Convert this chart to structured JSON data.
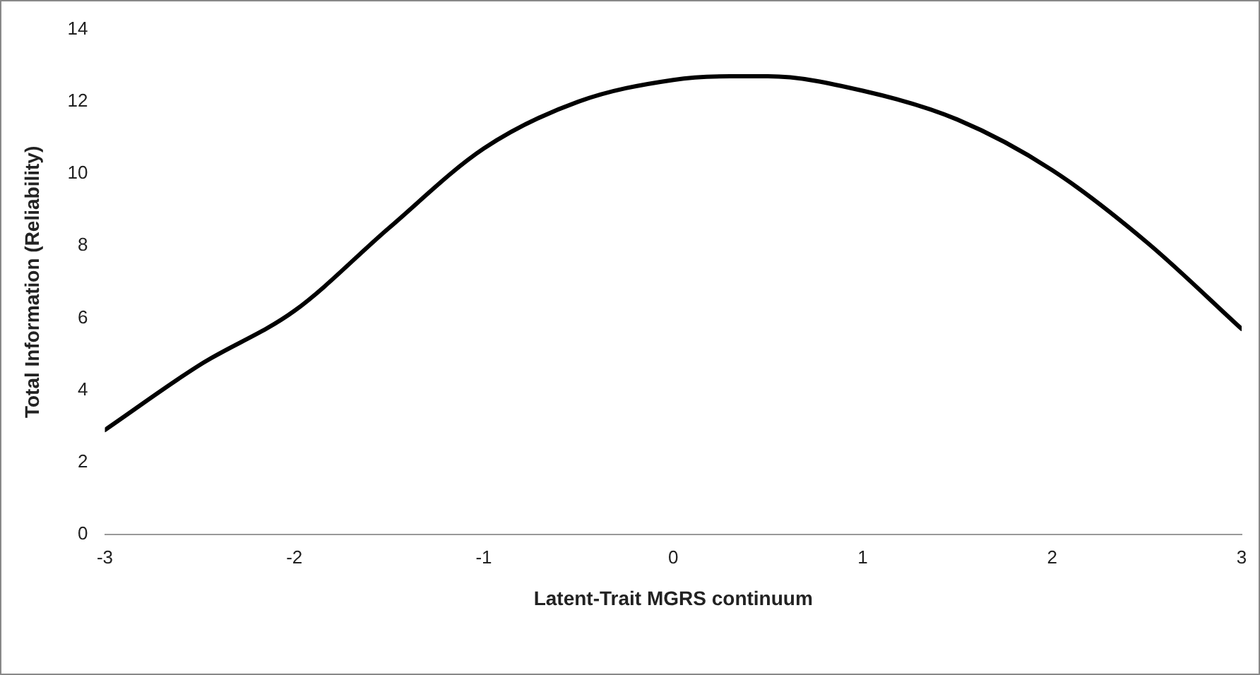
{
  "chart_data": {
    "type": "line",
    "xlabel": "Latent-Trait MGRS continuum",
    "ylabel": "Total Information (Reliability)",
    "x": [
      -3,
      -2.5,
      -2,
      -1.5,
      -1,
      -0.5,
      0,
      0.3,
      0.5,
      1,
      1.5,
      2,
      2.5,
      3
    ],
    "series": [
      {
        "color": "#000000",
        "values": [
          2.9,
          4.7,
          6.2,
          8.5,
          10.7,
          12.0,
          12.6,
          12.7,
          12.7,
          12.3,
          11.5,
          10.1,
          8.1,
          5.7
        ]
      }
    ],
    "xlim": [
      -3,
      3
    ],
    "xticks": [
      -3,
      -2,
      -1,
      0,
      1,
      2,
      3
    ],
    "ylim": [
      0,
      14
    ],
    "yticks": [
      0,
      2,
      4,
      6,
      8,
      10,
      12,
      14
    ],
    "grid": false,
    "legend": false,
    "marker": "none",
    "line_style": "solid"
  }
}
